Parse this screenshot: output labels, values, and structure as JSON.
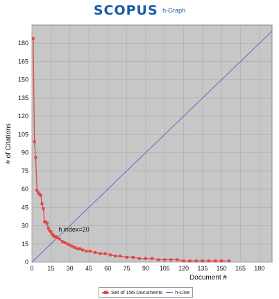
{
  "header": {
    "brand": "SCOPUS",
    "subtitle": "h-Graph"
  },
  "colors": {
    "brand": "#1a5aa6",
    "plot_bg": "#c7c7c7",
    "grid": "#b2b2b2",
    "series_docs": "#e04848",
    "series_hline": "#6666cc"
  },
  "chart_data": {
    "type": "line",
    "title": "",
    "xlabel": "Document #",
    "ylabel": "# of Citations",
    "xlim": [
      0,
      190
    ],
    "ylim": [
      0,
      195
    ],
    "xticks": [
      0,
      15,
      30,
      45,
      60,
      75,
      90,
      105,
      120,
      135,
      150,
      165,
      180
    ],
    "yticks": [
      0,
      15,
      30,
      45,
      60,
      75,
      90,
      105,
      120,
      135,
      150,
      165,
      180
    ],
    "grid": true,
    "legend_position": "bottom",
    "annotation": {
      "text": "h index=20",
      "x": 20,
      "y": 20
    },
    "series": [
      {
        "name": "Set of 156 Documents",
        "values": [
          [
            1,
            184
          ],
          [
            2,
            99
          ],
          [
            3,
            86
          ],
          [
            4,
            59
          ],
          [
            5,
            57
          ],
          [
            6,
            56
          ],
          [
            7,
            55
          ],
          [
            8,
            48
          ],
          [
            9,
            44
          ],
          [
            10,
            33
          ],
          [
            11,
            33
          ],
          [
            12,
            32
          ],
          [
            13,
            28
          ],
          [
            14,
            26
          ],
          [
            15,
            25
          ],
          [
            16,
            23
          ],
          [
            17,
            22
          ],
          [
            18,
            21
          ],
          [
            19,
            21
          ],
          [
            20,
            20
          ],
          [
            22,
            19
          ],
          [
            24,
            17
          ],
          [
            26,
            16
          ],
          [
            28,
            15
          ],
          [
            30,
            14
          ],
          [
            32,
            13
          ],
          [
            34,
            12
          ],
          [
            36,
            11
          ],
          [
            38,
            11
          ],
          [
            40,
            10
          ],
          [
            43,
            9
          ],
          [
            46,
            9
          ],
          [
            50,
            8
          ],
          [
            54,
            7
          ],
          [
            58,
            7
          ],
          [
            62,
            6
          ],
          [
            66,
            5
          ],
          [
            70,
            5
          ],
          [
            75,
            4
          ],
          [
            80,
            4
          ],
          [
            85,
            3
          ],
          [
            90,
            3
          ],
          [
            95,
            3
          ],
          [
            100,
            2
          ],
          [
            105,
            2
          ],
          [
            110,
            2
          ],
          [
            115,
            2
          ],
          [
            120,
            1
          ],
          [
            125,
            1
          ],
          [
            130,
            1
          ],
          [
            135,
            1
          ],
          [
            140,
            1
          ],
          [
            145,
            1
          ],
          [
            150,
            1
          ],
          [
            156,
            1
          ]
        ]
      },
      {
        "name": "h-Line",
        "values": [
          [
            0,
            0
          ],
          [
            190,
            190
          ]
        ]
      }
    ]
  }
}
